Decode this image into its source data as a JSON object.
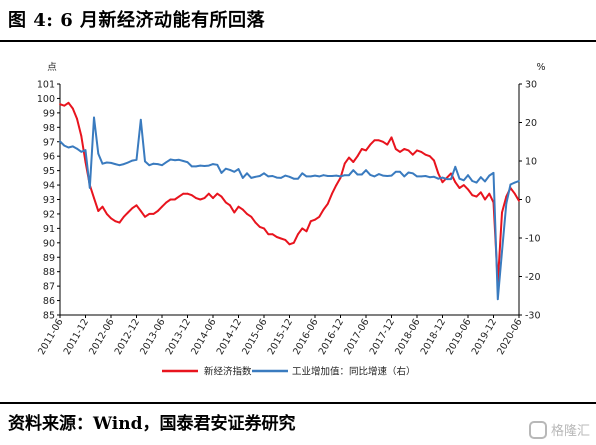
{
  "header": {
    "title": "图 4:  6 月新经济动能有所回落"
  },
  "footer": {
    "source": "资料来源：Wind，国泰君安证券研究"
  },
  "watermark": {
    "text": "格隆汇"
  },
  "colors": {
    "index_line": "#e8141e",
    "industry_line": "#3a7bbf",
    "axis": "#000000"
  },
  "chart_data": {
    "type": "line",
    "left_axis": {
      "unit": "点",
      "ylim": [
        85,
        101
      ],
      "ticks": [
        85,
        86,
        87,
        88,
        89,
        90,
        91,
        92,
        93,
        94,
        95,
        96,
        97,
        98,
        99,
        100,
        101
      ]
    },
    "right_axis": {
      "unit": "%",
      "ylim": [
        -30,
        30
      ],
      "ticks": [
        -30,
        -20,
        -10,
        0,
        10,
        20,
        30
      ]
    },
    "x_ticks": [
      "2011-06",
      "2011-12",
      "2012-06",
      "2012-12",
      "2013-06",
      "2013-12",
      "2014-06",
      "2014-12",
      "2015-06",
      "2015-12",
      "2016-06",
      "2016-12",
      "2017-06",
      "2017-12",
      "2018-06",
      "2018-12",
      "2019-06",
      "2019-12",
      "2020-06"
    ],
    "x_start": "2011-06",
    "x_end": "2020-06",
    "grid": false,
    "legend_position": "bottom",
    "series": [
      {
        "name": "新经济指数",
        "axis": "left",
        "color": "#e8141e",
        "x": [
          "2011-06",
          "2011-07",
          "2011-08",
          "2011-09",
          "2011-10",
          "2011-11",
          "2011-12",
          "2012-01",
          "2012-02",
          "2012-03",
          "2012-04",
          "2012-05",
          "2012-06",
          "2012-07",
          "2012-08",
          "2012-09",
          "2012-10",
          "2012-11",
          "2012-12",
          "2013-01",
          "2013-02",
          "2013-03",
          "2013-04",
          "2013-05",
          "2013-06",
          "2013-07",
          "2013-08",
          "2013-09",
          "2013-10",
          "2013-11",
          "2013-12",
          "2014-01",
          "2014-02",
          "2014-03",
          "2014-04",
          "2014-05",
          "2014-06",
          "2014-07",
          "2014-08",
          "2014-09",
          "2014-10",
          "2014-11",
          "2014-12",
          "2015-01",
          "2015-02",
          "2015-03",
          "2015-04",
          "2015-05",
          "2015-06",
          "2015-07",
          "2015-08",
          "2015-09",
          "2015-10",
          "2015-11",
          "2015-12",
          "2016-01",
          "2016-02",
          "2016-03",
          "2016-04",
          "2016-05",
          "2016-06",
          "2016-07",
          "2016-08",
          "2016-09",
          "2016-10",
          "2016-11",
          "2016-12",
          "2017-01",
          "2017-02",
          "2017-03",
          "2017-04",
          "2017-05",
          "2017-06",
          "2017-07",
          "2017-08",
          "2017-09",
          "2017-10",
          "2017-11",
          "2017-12",
          "2018-01",
          "2018-02",
          "2018-03",
          "2018-04",
          "2018-05",
          "2018-06",
          "2018-07",
          "2018-08",
          "2018-09",
          "2018-10",
          "2018-11",
          "2018-12",
          "2019-01",
          "2019-02",
          "2019-03",
          "2019-04",
          "2019-05",
          "2019-06",
          "2019-07",
          "2019-08",
          "2019-09",
          "2019-10",
          "2019-11",
          "2019-12",
          "2020-01",
          "2020-02",
          "2020-03",
          "2020-04",
          "2020-05",
          "2020-06"
        ],
        "values": [
          99.6,
          99.5,
          99.7,
          99.3,
          98.6,
          97.4,
          95.6,
          94.0,
          93.1,
          92.2,
          92.5,
          92.0,
          91.7,
          91.5,
          91.4,
          91.8,
          92.1,
          92.4,
          92.6,
          92.2,
          91.8,
          92.0,
          92.0,
          92.2,
          92.5,
          92.8,
          93.0,
          93.0,
          93.2,
          93.4,
          93.4,
          93.3,
          93.1,
          93.0,
          93.1,
          93.4,
          93.1,
          93.4,
          93.2,
          92.8,
          92.6,
          92.1,
          92.5,
          92.3,
          92.0,
          91.8,
          91.4,
          91.1,
          91.0,
          90.6,
          90.6,
          90.4,
          90.3,
          90.2,
          89.9,
          90.0,
          90.6,
          91.0,
          90.8,
          91.5,
          91.6,
          91.8,
          92.3,
          92.7,
          93.4,
          94.0,
          94.5,
          95.5,
          95.9,
          95.6,
          96.0,
          96.5,
          96.4,
          96.8,
          97.1,
          97.1,
          97.0,
          96.8,
          97.3,
          96.5,
          96.3,
          96.5,
          96.4,
          96.1,
          96.4,
          96.3,
          96.1,
          96.0,
          95.7,
          94.8,
          94.2,
          94.5,
          94.8,
          94.2,
          93.8,
          94.0,
          93.7,
          93.3,
          93.2,
          93.5,
          93.0,
          93.4,
          92.8,
          87.2,
          92.1,
          93.2,
          93.8,
          93.4,
          92.9
        ]
      },
      {
        "name": "工业增加值：同比增速（右）",
        "axis": "right",
        "color": "#3a7bbf",
        "x": [
          "2011-06",
          "2011-07",
          "2011-08",
          "2011-09",
          "2011-10",
          "2011-11",
          "2011-12",
          "2012-01",
          "2012-02",
          "2012-03",
          "2012-04",
          "2012-05",
          "2012-06",
          "2012-07",
          "2012-08",
          "2012-09",
          "2012-10",
          "2012-11",
          "2012-12",
          "2013-01",
          "2013-02",
          "2013-03",
          "2013-04",
          "2013-05",
          "2013-06",
          "2013-07",
          "2013-08",
          "2013-09",
          "2013-10",
          "2013-11",
          "2013-12",
          "2014-01",
          "2014-02",
          "2014-03",
          "2014-04",
          "2014-05",
          "2014-06",
          "2014-07",
          "2014-08",
          "2014-09",
          "2014-10",
          "2014-11",
          "2014-12",
          "2015-01",
          "2015-02",
          "2015-03",
          "2015-04",
          "2015-05",
          "2015-06",
          "2015-07",
          "2015-08",
          "2015-09",
          "2015-10",
          "2015-11",
          "2015-12",
          "2016-01",
          "2016-02",
          "2016-03",
          "2016-04",
          "2016-05",
          "2016-06",
          "2016-07",
          "2016-08",
          "2016-09",
          "2016-10",
          "2016-11",
          "2016-12",
          "2017-01",
          "2017-02",
          "2017-03",
          "2017-04",
          "2017-05",
          "2017-06",
          "2017-07",
          "2017-08",
          "2017-09",
          "2017-10",
          "2017-11",
          "2017-12",
          "2018-01",
          "2018-02",
          "2018-03",
          "2018-04",
          "2018-05",
          "2018-06",
          "2018-07",
          "2018-08",
          "2018-09",
          "2018-10",
          "2018-11",
          "2018-12",
          "2019-01",
          "2019-02",
          "2019-03",
          "2019-04",
          "2019-05",
          "2019-06",
          "2019-07",
          "2019-08",
          "2019-09",
          "2019-10",
          "2019-11",
          "2019-12",
          "2020-01",
          "2020-02",
          "2020-03",
          "2020-04",
          "2020-05",
          "2020-06"
        ],
        "values": [
          15.1,
          14.0,
          13.5,
          13.8,
          13.2,
          12.4,
          12.8,
          3.0,
          21.3,
          11.9,
          9.3,
          9.6,
          9.5,
          9.2,
          8.9,
          9.2,
          9.6,
          10.1,
          10.3,
          20.7,
          9.9,
          8.9,
          9.3,
          9.2,
          8.9,
          9.7,
          10.4,
          10.2,
          10.3,
          10.0,
          9.7,
          8.6,
          8.6,
          8.8,
          8.7,
          8.8,
          9.2,
          9.0,
          6.9,
          8.0,
          7.7,
          7.2,
          7.9,
          5.6,
          6.8,
          5.6,
          5.9,
          6.1,
          6.8,
          6.0,
          6.1,
          5.7,
          5.6,
          6.2,
          5.9,
          5.4,
          5.4,
          6.8,
          6.0,
          6.0,
          6.2,
          6.0,
          6.3,
          6.1,
          6.1,
          6.2,
          6.0,
          6.3,
          6.3,
          7.6,
          6.5,
          6.5,
          7.6,
          6.4,
          6.0,
          6.6,
          6.2,
          6.1,
          6.2,
          7.2,
          7.2,
          6.0,
          7.0,
          6.8,
          6.0,
          6.0,
          6.1,
          5.8,
          5.9,
          5.4,
          5.7,
          5.3,
          5.3,
          8.5,
          5.4,
          5.0,
          6.3,
          4.8,
          4.4,
          5.8,
          4.7,
          6.2,
          6.9,
          -25.9,
          -13.5,
          -1.1,
          3.9,
          4.4,
          4.8
        ]
      }
    ]
  }
}
